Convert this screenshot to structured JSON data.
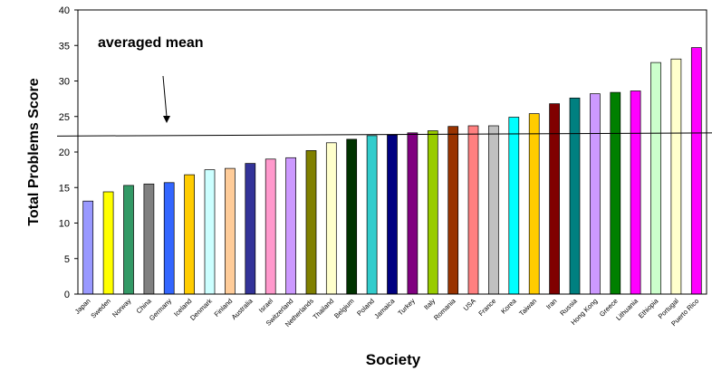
{
  "chart_data": {
    "type": "bar",
    "title": "",
    "xlabel": "Society",
    "ylabel": "Total Problems Score",
    "ylim": [
      0,
      40
    ],
    "yticks": [
      0,
      5,
      10,
      15,
      20,
      25,
      30,
      35,
      40
    ],
    "grid": false,
    "legend": "none",
    "categories": [
      "Japan",
      "Sweden",
      "Norway",
      "China",
      "Germany",
      "Iceland",
      "Denmark",
      "Finland",
      "Australia",
      "Israel",
      "Switzerland",
      "Netherlands",
      "Thailand",
      "Belgium",
      "Poland",
      "Jamaica",
      "Turkey",
      "Italy",
      "Romania",
      "USA",
      "France",
      "Korea",
      "Taiwan",
      "Iran",
      "Russia",
      "Hong Kong",
      "Greece",
      "Lithuania",
      "Ethiopia",
      "Portugal",
      "Puerto Rico"
    ],
    "values": [
      13.1,
      14.4,
      15.3,
      15.5,
      15.7,
      16.8,
      17.5,
      17.7,
      18.4,
      19.0,
      19.2,
      20.2,
      21.3,
      21.8,
      22.3,
      22.4,
      22.7,
      23.0,
      23.6,
      23.7,
      23.7,
      24.9,
      25.4,
      26.8,
      27.6,
      28.2,
      28.4,
      28.6,
      32.6,
      33.1,
      34.7
    ],
    "colors": [
      "#9999ff",
      "#ffff00",
      "#339966",
      "#808080",
      "#3366ff",
      "#ffcc00",
      "#ccffff",
      "#ffcc99",
      "#333399",
      "#ff99cc",
      "#cc99ff",
      "#808000",
      "#ffffcc",
      "#003300",
      "#33cccc",
      "#000080",
      "#800080",
      "#99cc00",
      "#993300",
      "#ff8080",
      "#c0c0c0",
      "#00ffff",
      "#ffcc00",
      "#800000",
      "#008080",
      "#cc99ff",
      "#008000",
      "#ff00ff",
      "#ccffcc",
      "#ffffcc",
      "#ff00ff"
    ],
    "reference_line": {
      "label": "averaged mean",
      "value": 22.5
    }
  }
}
